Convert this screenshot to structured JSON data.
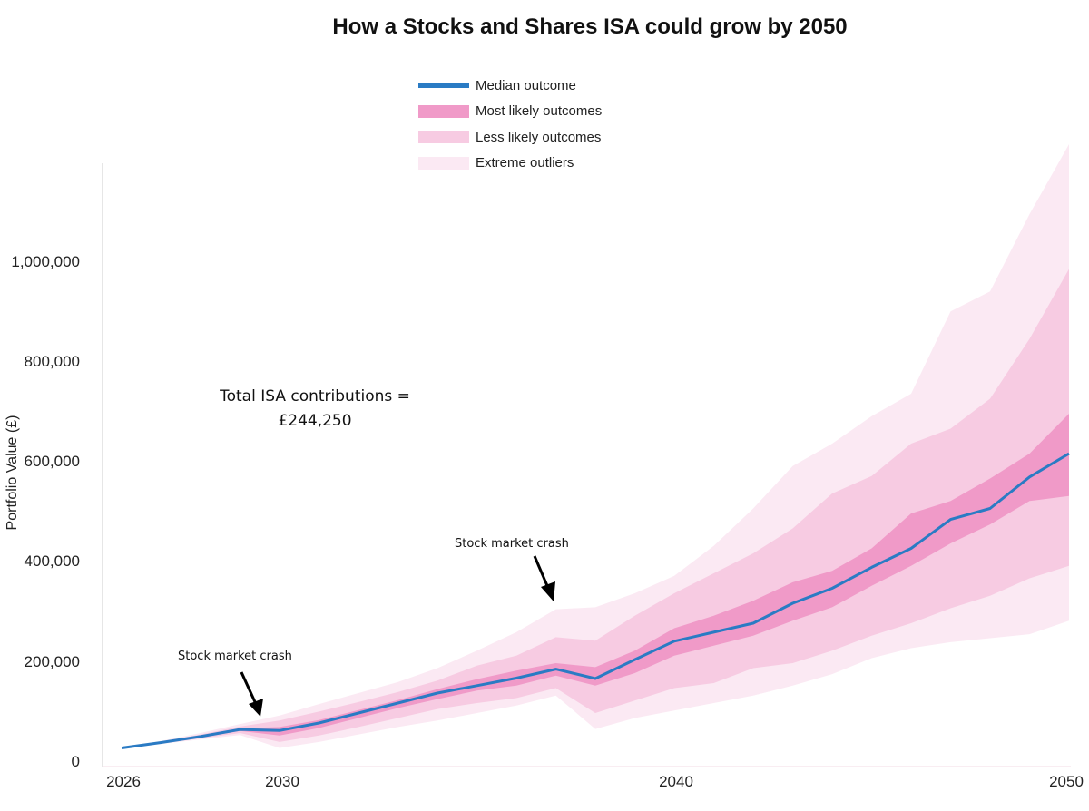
{
  "title": "How a Stocks and Shares ISA could grow by 2050",
  "legend": [
    {
      "label": "Median outcome",
      "color": "#2a7bc4",
      "type": "line"
    },
    {
      "label": "Most likely outcomes",
      "color": "#f09ac8",
      "type": "area"
    },
    {
      "label": "Less likely outcomes",
      "color": "#f7cbe2",
      "type": "area"
    },
    {
      "label": "Extreme outliers",
      "color": "#fbe9f3",
      "type": "area"
    }
  ],
  "annotations": {
    "contributions_line1": "Total ISA contributions =",
    "contributions_line2": "£244,250",
    "crash1": "Stock market crash",
    "crash2": "Stock market crash"
  },
  "axes": {
    "ylabel": "Portfolio Value (£)",
    "yticks": [
      "0",
      "200,000",
      "400,000",
      "600,000",
      "800,000",
      "1,000,000"
    ],
    "xticks": [
      "2026",
      "2030",
      "2040",
      "2050"
    ]
  },
  "chart_data": {
    "type": "area",
    "title": "How a Stocks and Shares ISA could grow by 2050",
    "xlabel": "",
    "ylabel": "Portfolio Value (£)",
    "ylim": [
      0,
      1250000
    ],
    "xlim": [
      2026,
      2050
    ],
    "grid": false,
    "legend_position": "top-center",
    "x": [
      2026,
      2027,
      2028,
      2029,
      2030,
      2031,
      2032,
      2033,
      2034,
      2035,
      2036,
      2037,
      2038,
      2039,
      2040,
      2041,
      2042,
      2043,
      2044,
      2045,
      2046,
      2047,
      2048,
      2049,
      2050
    ],
    "series": [
      {
        "name": "Extreme outliers (upper)",
        "values": [
          31000,
          44000,
          60000,
          78000,
          95000,
          118000,
          140000,
          162000,
          190000,
          225000,
          262000,
          308000,
          312000,
          340000,
          375000,
          435000,
          510000,
          595000,
          640000,
          695000,
          740000,
          905000,
          945000,
          1100000,
          1240000
        ]
      },
      {
        "name": "Less likely outcomes (upper)",
        "values": [
          31000,
          43000,
          57000,
          73000,
          85000,
          103000,
          122000,
          142000,
          165000,
          195000,
          215000,
          252000,
          245000,
          295000,
          340000,
          380000,
          420000,
          470000,
          540000,
          575000,
          640000,
          670000,
          730000,
          850000,
          990000
        ]
      },
      {
        "name": "Most likely outcomes (upper)",
        "values": [
          30000,
          42000,
          55000,
          69000,
          72000,
          86000,
          106000,
          126000,
          148000,
          168000,
          185000,
          200000,
          192000,
          225000,
          270000,
          295000,
          325000,
          362000,
          385000,
          430000,
          500000,
          525000,
          570000,
          620000,
          700000
        ]
      },
      {
        "name": "Median outcome",
        "values": [
          30000,
          41000,
          53000,
          67000,
          65000,
          80000,
          100000,
          120000,
          140000,
          155000,
          170000,
          188000,
          169000,
          207000,
          244000,
          262000,
          280000,
          320000,
          350000,
          392000,
          430000,
          488000,
          510000,
          573000,
          620000
        ]
      },
      {
        "name": "Most likely outcomes (lower)",
        "values": [
          29000,
          40000,
          51000,
          64000,
          55000,
          70000,
          90000,
          110000,
          128000,
          145000,
          155000,
          175000,
          155000,
          180000,
          215000,
          235000,
          255000,
          285000,
          312000,
          355000,
          395000,
          440000,
          478000,
          525000,
          535000
        ]
      },
      {
        "name": "Less likely outcomes (lower)",
        "values": [
          29000,
          39000,
          49000,
          60000,
          42000,
          55000,
          72000,
          90000,
          108000,
          120000,
          130000,
          150000,
          100000,
          125000,
          150000,
          160000,
          190000,
          200000,
          225000,
          255000,
          280000,
          310000,
          335000,
          370000,
          395000
        ]
      },
      {
        "name": "Extreme outliers (lower)",
        "values": [
          28000,
          38000,
          47000,
          56000,
          30000,
          42000,
          57000,
          72000,
          85000,
          100000,
          115000,
          135000,
          68000,
          90000,
          105000,
          120000,
          135000,
          155000,
          178000,
          210000,
          230000,
          242000,
          250000,
          258000,
          285000
        ]
      }
    ]
  }
}
